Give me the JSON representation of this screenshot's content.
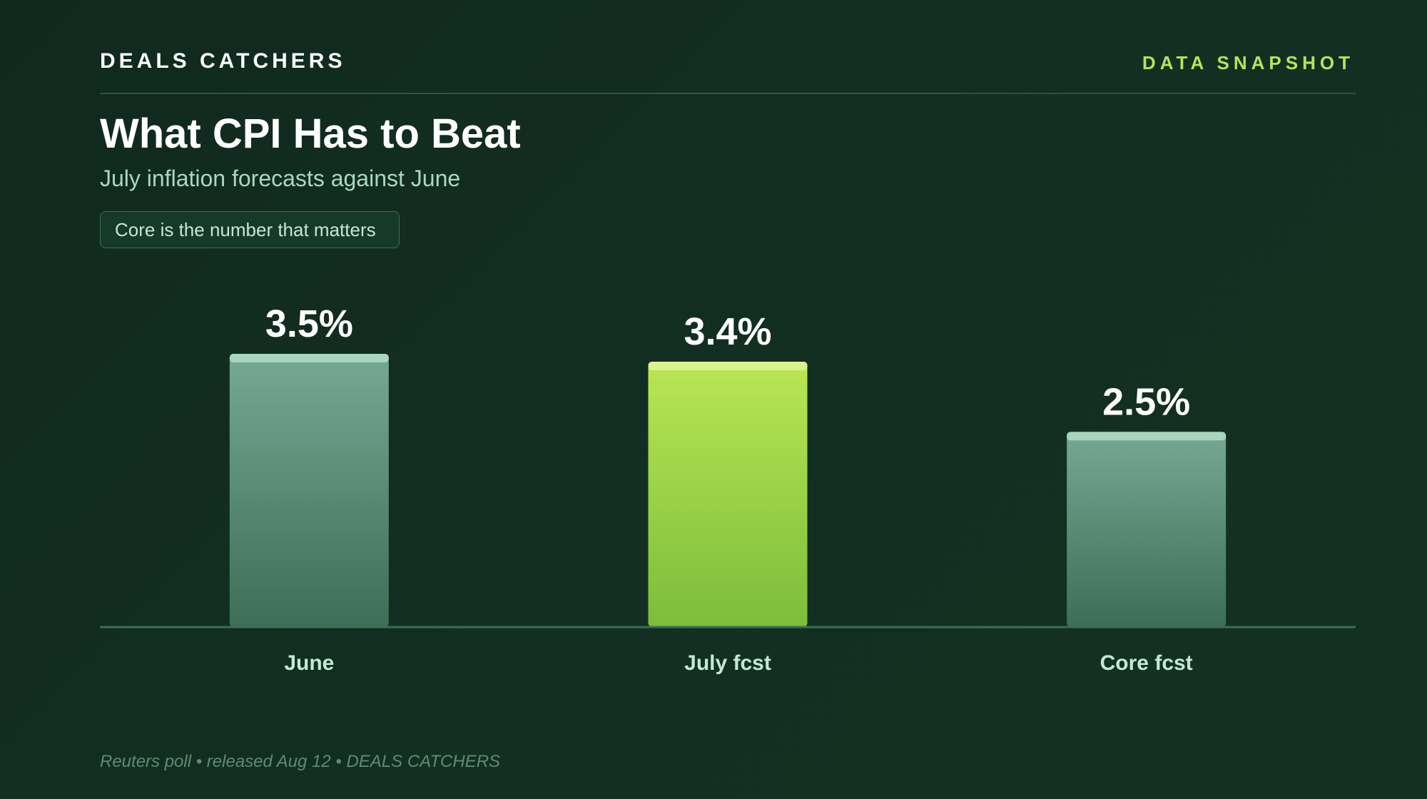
{
  "header": {
    "brand": "DEALS CATCHERS",
    "tag": "DATA SNAPSHOT",
    "title": "What CPI Has to Beat",
    "subtitle": "July inflation forecasts against June",
    "callout": "Core is the number that matters"
  },
  "footer": {
    "source": "Reuters poll • released Aug 12 • DEALS CATCHERS"
  },
  "colors": {
    "background": "#11291f",
    "neutral_bar_top": "#76a894",
    "neutral_bar_bottom": "#3d6e56",
    "neutral_bar_cap": "#a7d5bd",
    "highlight_bar_top": "#b9e654",
    "highlight_bar_bottom": "#7cbd3b",
    "highlight_bar_cap": "#d8f58c",
    "baseline": "#3d6e56",
    "category_label": "#c4e9d2",
    "value_label": "#ffffff"
  },
  "chart_data": {
    "type": "bar",
    "categories": [
      "June",
      "July fcst",
      "Core fcst"
    ],
    "values": [
      3.5,
      3.4,
      2.5
    ],
    "value_labels": [
      "3.5%",
      "3.4%",
      "2.5%"
    ],
    "highlight": [
      false,
      true,
      false
    ],
    "ylim": [
      0,
      3.5
    ],
    "grid": false,
    "legend": "none"
  }
}
